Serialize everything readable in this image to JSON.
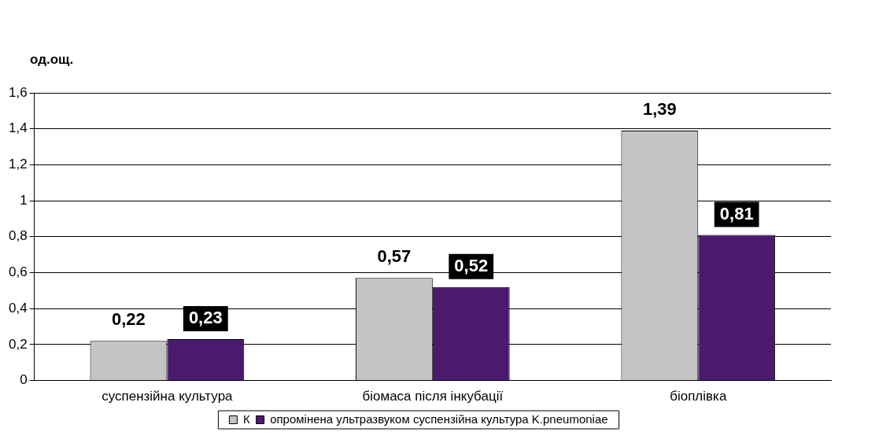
{
  "chart_data": {
    "type": "bar",
    "ylabel": "од.ощ.",
    "categories": [
      "суспензійна культура",
      "біомаса після інкубації",
      "біоплівка"
    ],
    "series": [
      {
        "name": "К",
        "color": "#c4c4c4",
        "values": [
          0.22,
          0.57,
          1.39
        ],
        "value_labels": [
          "0,22",
          "0,57",
          "1,39"
        ]
      },
      {
        "name": "опромінена ультразвуком суспензійна культура K.pneumoniae",
        "color": "#4b1a6e",
        "values": [
          0.23,
          0.52,
          0.81
        ],
        "value_labels": [
          "0,23",
          "0,52",
          "0,81"
        ]
      }
    ],
    "ylim": [
      0,
      1.6
    ],
    "yticks": [
      0,
      {
        "value": 0.2,
        "label": "0,2"
      },
      {
        "value": 0.4,
        "label": "0,4"
      },
      {
        "value": 0.6,
        "label": "0,6"
      },
      {
        "value": 0.8,
        "label": "0,8"
      },
      1,
      {
        "value": 1.2,
        "label": "1,2"
      },
      {
        "value": 1.4,
        "label": "1,4"
      },
      {
        "value": 1.6,
        "label": "1,6"
      }
    ],
    "grid": "y",
    "legend": "bottom"
  }
}
